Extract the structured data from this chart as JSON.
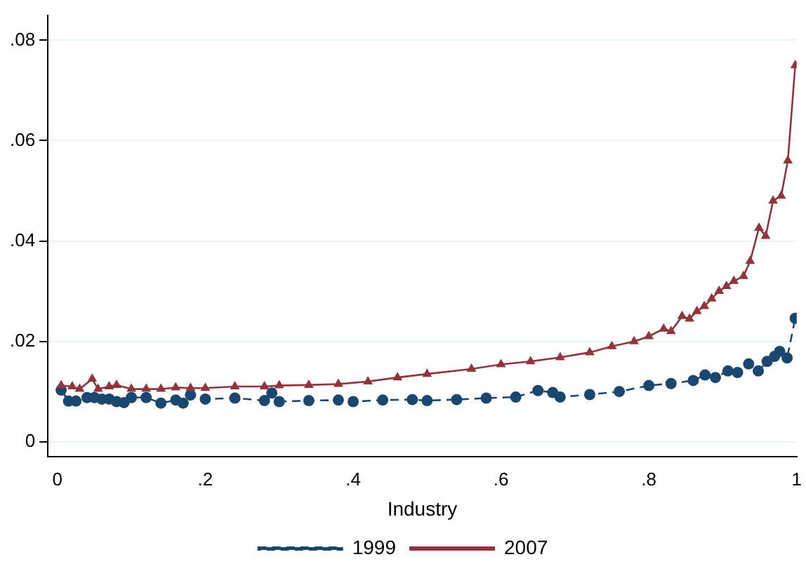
{
  "chart_data": {
    "type": "line",
    "xlabel": "Industry",
    "xlim": [
      -0.013,
      1.0
    ],
    "ylim": [
      -0.003,
      0.085
    ],
    "xticks": [
      {
        "value": 0,
        "label": "0"
      },
      {
        "value": 0.2,
        "label": ".2"
      },
      {
        "value": 0.4,
        "label": ".4"
      },
      {
        "value": 0.6,
        "label": ".6"
      },
      {
        "value": 0.8,
        "label": ".8"
      },
      {
        "value": 1,
        "label": "1"
      }
    ],
    "yticks": [
      {
        "value": 0,
        "label": "0"
      },
      {
        "value": 0.02,
        "label": ".02"
      },
      {
        "value": 0.04,
        "label": ".04"
      },
      {
        "value": 0.06,
        "label": ".06"
      },
      {
        "value": 0.08,
        "label": ".08"
      }
    ],
    "grid": "y",
    "legend": "bottom",
    "series": [
      {
        "name": "1999",
        "color": "#1a476f",
        "marker": "circle",
        "line_style": "dashed",
        "x": [
          0.005,
          0.015,
          0.025,
          0.04,
          0.05,
          0.06,
          0.07,
          0.08,
          0.09,
          0.1,
          0.12,
          0.14,
          0.16,
          0.17,
          0.18,
          0.2,
          0.24,
          0.28,
          0.29,
          0.3,
          0.34,
          0.38,
          0.4,
          0.44,
          0.48,
          0.5,
          0.54,
          0.58,
          0.62,
          0.65,
          0.67,
          0.68,
          0.72,
          0.76,
          0.8,
          0.83,
          0.86,
          0.876,
          0.89,
          0.907,
          0.92,
          0.935,
          0.948,
          0.96,
          0.97,
          0.977,
          0.987,
          0.998
        ],
        "values": [
          0.0103,
          0.0081,
          0.0081,
          0.0088,
          0.0088,
          0.0085,
          0.0085,
          0.008,
          0.0078,
          0.0088,
          0.0088,
          0.0077,
          0.0083,
          0.0077,
          0.0093,
          0.0085,
          0.0087,
          0.0082,
          0.0097,
          0.008,
          0.0082,
          0.0083,
          0.008,
          0.0083,
          0.0084,
          0.0082,
          0.0084,
          0.0087,
          0.0089,
          0.0102,
          0.0098,
          0.0089,
          0.0094,
          0.01,
          0.0112,
          0.0116,
          0.0122,
          0.0133,
          0.0128,
          0.0141,
          0.0138,
          0.0155,
          0.0141,
          0.016,
          0.017,
          0.018,
          0.0167,
          0.0246
        ]
      },
      {
        "name": "2007",
        "color": "#90353b",
        "marker": "triangle",
        "line_style": "solid",
        "x": [
          0.005,
          0.02,
          0.03,
          0.047,
          0.055,
          0.07,
          0.08,
          0.1,
          0.12,
          0.14,
          0.16,
          0.18,
          0.2,
          0.24,
          0.28,
          0.3,
          0.34,
          0.38,
          0.42,
          0.46,
          0.5,
          0.56,
          0.6,
          0.64,
          0.68,
          0.72,
          0.75,
          0.78,
          0.8,
          0.82,
          0.83,
          0.845,
          0.855,
          0.865,
          0.875,
          0.885,
          0.895,
          0.905,
          0.915,
          0.928,
          0.937,
          0.949,
          0.958,
          0.968,
          0.979,
          0.988,
          0.998
        ],
        "values": [
          0.0112,
          0.011,
          0.0105,
          0.0125,
          0.0105,
          0.011,
          0.0113,
          0.0105,
          0.0105,
          0.0105,
          0.0108,
          0.0107,
          0.0107,
          0.011,
          0.011,
          0.0112,
          0.0113,
          0.0115,
          0.012,
          0.0128,
          0.0135,
          0.0145,
          0.0154,
          0.016,
          0.0168,
          0.0178,
          0.019,
          0.02,
          0.021,
          0.0225,
          0.022,
          0.025,
          0.0245,
          0.026,
          0.027,
          0.0285,
          0.03,
          0.031,
          0.032,
          0.033,
          0.036,
          0.0426,
          0.041,
          0.048,
          0.049,
          0.056,
          0.075
        ]
      }
    ]
  }
}
